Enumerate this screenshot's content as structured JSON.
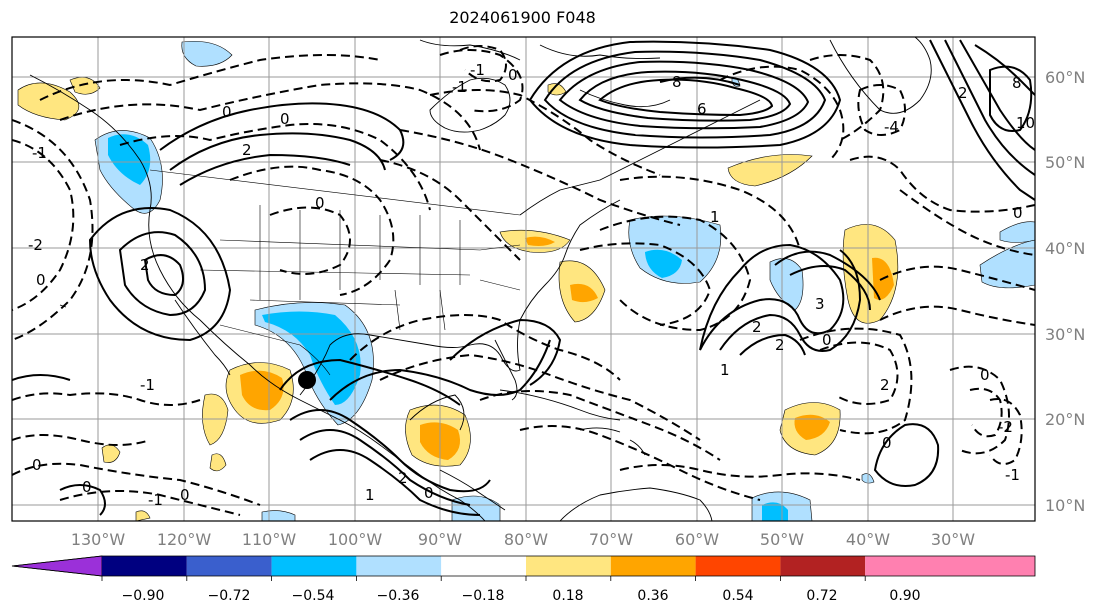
{
  "title": "2024061900 F048",
  "lat_labels": [
    "60°N",
    "50°N",
    "40°N",
    "30°N",
    "20°N",
    "10°N"
  ],
  "lon_labels": [
    "130°W",
    "120°W",
    "110°W",
    "100°W",
    "90°W",
    "80°W",
    "70°W",
    "60°W",
    "50°W",
    "40°W",
    "30°W"
  ],
  "colorbar": {
    "ticks": [
      "−0.90",
      "−0.72",
      "−0.54",
      "−0.36",
      "−0.18",
      "0.18",
      "0.36",
      "0.54",
      "0.72",
      "0.90"
    ],
    "colors": [
      "#9b30d9",
      "#000080",
      "#3a5fcd",
      "#00bfff",
      "#b0e0ff",
      "#ffffff",
      "#ffe680",
      "#ffa500",
      "#ff4500",
      "#b22222",
      "#ff80b0"
    ]
  },
  "contour_labels": [
    "0",
    "2",
    "0",
    "-1",
    "0",
    "-1",
    "2",
    "0",
    "0",
    "2",
    "0",
    "-1",
    "1",
    "6",
    "8",
    "-4",
    "8",
    "10",
    "0",
    "1",
    "3",
    "2",
    "0",
    "2",
    "0",
    "1",
    "2",
    "0",
    "-1",
    "-2",
    "0",
    "-1",
    "-2",
    "0",
    "-1",
    "2",
    "0"
  ],
  "marker": "black-dot"
}
